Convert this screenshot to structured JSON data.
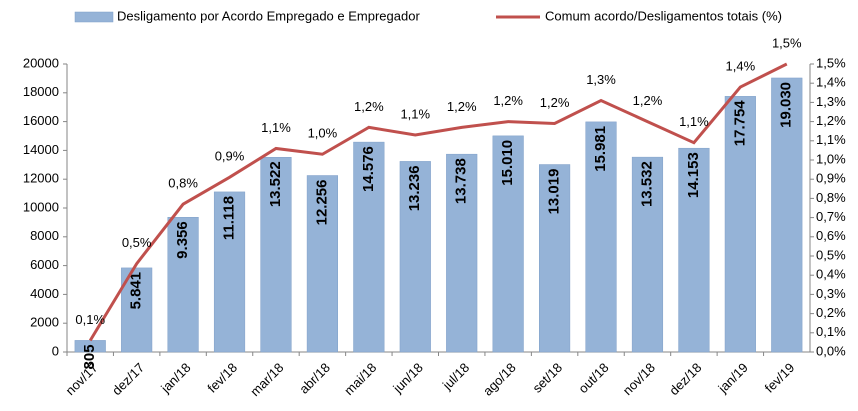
{
  "chart_data": {
    "type": "bar_line",
    "categories": [
      "nov/17",
      "dez/17",
      "jan/18",
      "fev/18",
      "mar/18",
      "abr/18",
      "mai/18",
      "jun/18",
      "jul/18",
      "ago/18",
      "set/18",
      "out/18",
      "nov/18",
      "dez/18",
      "jan/19",
      "fev/19"
    ],
    "series": [
      {
        "name": "Desligamento por Acordo Empregado e Empregador",
        "type": "bar",
        "color": "#95b3d7",
        "values": [
          805,
          5841,
          9356,
          11118,
          13522,
          12256,
          14576,
          13236,
          13738,
          15010,
          13019,
          15981,
          13532,
          14153,
          17754,
          19030
        ],
        "value_labels": [
          "805",
          "5.841",
          "9.356",
          "11.118",
          "13.522",
          "12.256",
          "14.576",
          "13.236",
          "13.738",
          "15.010",
          "13.019",
          "15.981",
          "13.532",
          "14.153",
          "17.754",
          "19.030"
        ]
      },
      {
        "name": "Comum acordo/Desligamentos totais (%)",
        "type": "line",
        "color": "#c0504d",
        "axis": "y2",
        "values": [
          0.06,
          0.46,
          0.77,
          0.91,
          1.06,
          1.03,
          1.17,
          1.13,
          1.17,
          1.2,
          1.19,
          1.31,
          1.2,
          1.09,
          1.38,
          1.5
        ],
        "value_labels": [
          "0,1%",
          "0,5%",
          "0,8%",
          "0,9%",
          "1,1%",
          "1,0%",
          "1,2%",
          "1,1%",
          "1,2%",
          "1,2%",
          "1,2%",
          "1,3%",
          "1,2%",
          "1,1%",
          "1,4%",
          "1,5%"
        ]
      }
    ],
    "ylim": [
      0,
      20000
    ],
    "yticks": [
      0,
      2000,
      4000,
      6000,
      8000,
      10000,
      12000,
      14000,
      16000,
      18000,
      20000
    ],
    "y2lim": [
      0,
      1.5
    ],
    "y2ticks": [
      {
        "value": 0,
        "label": "0,0%"
      },
      {
        "value": 0.1,
        "label": "0,1%"
      },
      {
        "value": 0.2,
        "label": "0,2%"
      },
      {
        "value": 0.3,
        "label": "0,3%"
      },
      {
        "value": 0.4,
        "label": "0,4%"
      },
      {
        "value": 0.5,
        "label": "0,5%"
      },
      {
        "value": 0.6,
        "label": "0,6%"
      },
      {
        "value": 0.7,
        "label": "0,7%"
      },
      {
        "value": 0.8,
        "label": "0,8%"
      },
      {
        "value": 0.9,
        "label": "0,9%"
      },
      {
        "value": 1.0,
        "label": "1,0%"
      },
      {
        "value": 1.1,
        "label": "1,1%"
      },
      {
        "value": 1.2,
        "label": "1,2%"
      },
      {
        "value": 1.3,
        "label": "1,3%"
      },
      {
        "value": 1.4,
        "label": "1,4%"
      },
      {
        "value": 1.5,
        "label": "1,5%"
      }
    ],
    "legend": "top",
    "grid": false
  }
}
